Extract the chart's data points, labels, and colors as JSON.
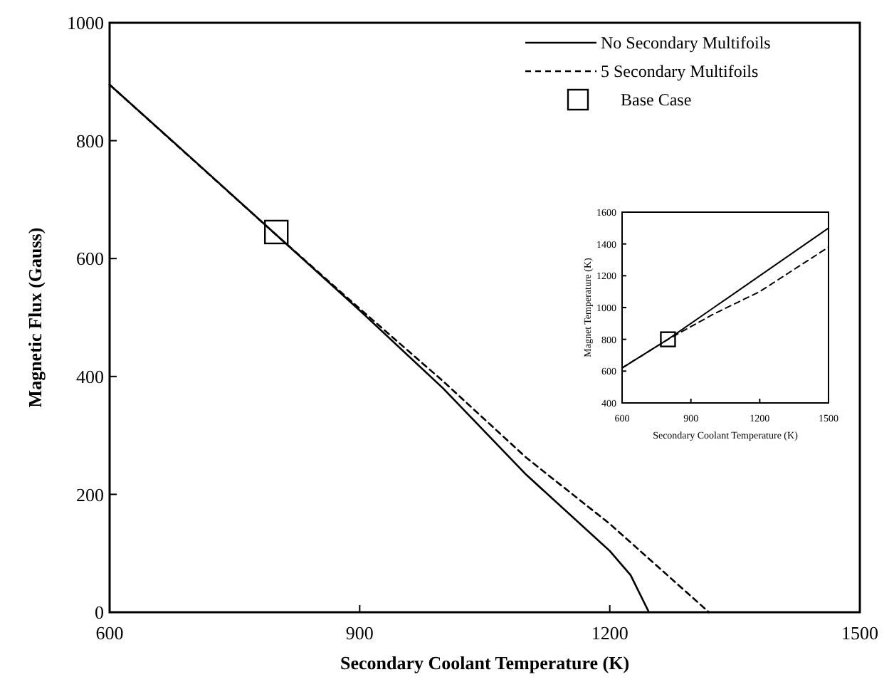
{
  "chart_data": [
    {
      "type": "line",
      "xlabel": "Secondary Coolant Temperature (K)",
      "ylabel": "Magnetic Flux (Gauss)",
      "xlim": [
        600,
        1500
      ],
      "ylim": [
        0,
        1000
      ],
      "xticks": [
        600,
        900,
        1200,
        1500
      ],
      "yticks": [
        0,
        200,
        400,
        600,
        800,
        1000
      ],
      "legend": "top right",
      "grid": false,
      "series": [
        {
          "name": "No Secondary Multifoils",
          "color": "#000000",
          "line_style": "solid",
          "x": [
            600,
            700,
            800,
            900,
            1000,
            1100,
            1200,
            1225,
            1247
          ],
          "values": [
            895,
            768,
            640,
            512,
            380,
            233,
            104,
            63,
            0
          ]
        },
        {
          "name": "5 Secondary Multifoils",
          "color": "#000000",
          "line_style": "dashed",
          "x": [
            600,
            800,
            900,
            1000,
            1100,
            1200,
            1319
          ],
          "values": [
            895,
            640,
            515,
            392,
            262,
            150,
            0
          ]
        },
        {
          "name": "Base Case",
          "type": "scatter",
          "marker": "square",
          "color": "#000000",
          "x": [
            800
          ],
          "values": [
            645
          ]
        }
      ]
    },
    {
      "type": "line",
      "xlabel": "Secondary Coolant Temperature (K)",
      "ylabel": "Magnet Temperature (K)",
      "xlim": [
        600,
        1500
      ],
      "ylim": [
        400,
        1600
      ],
      "xticks": [
        600,
        900,
        1200,
        1500
      ],
      "yticks": [
        400,
        600,
        800,
        1000,
        1200,
        1400,
        1600
      ],
      "grid": false,
      "series": [
        {
          "color": "#000000",
          "line_style": "solid",
          "x": [
            600,
            800,
            1000,
            1200,
            1500
          ],
          "values": [
            620,
            800,
            1000,
            1200,
            1500
          ]
        },
        {
          "color": "#000000",
          "line_style": "dashed",
          "x": [
            600,
            800,
            1000,
            1200,
            1500
          ],
          "values": [
            620,
            800,
            960,
            1100,
            1380
          ]
        },
        {
          "type": "scatter",
          "marker": "square",
          "color": "#000000",
          "x": [
            800
          ],
          "values": [
            800
          ]
        }
      ]
    }
  ]
}
